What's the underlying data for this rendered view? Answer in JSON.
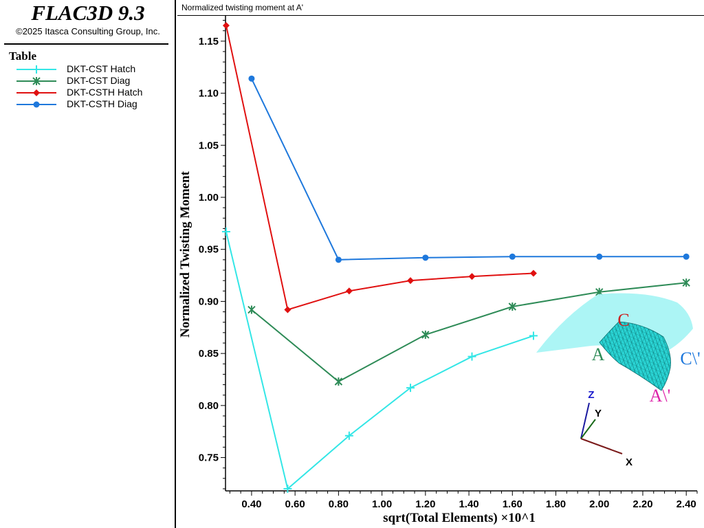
{
  "app": {
    "title": "FLAC3D 9.3",
    "copyright": "©2025 Itasca Consulting Group, Inc."
  },
  "legend": {
    "title": "Table",
    "items": [
      {
        "label": "DKT-CST Hatch",
        "color": "#33e6e6",
        "marker": "plus"
      },
      {
        "label": "DKT-CST Diag",
        "color": "#2e8b57",
        "marker": "asterisk"
      },
      {
        "label": "DKT-CSTH Hatch",
        "color": "#e01010",
        "marker": "diamond"
      },
      {
        "label": "DKT-CSTH Diag",
        "color": "#1e78dc",
        "marker": "circle"
      }
    ]
  },
  "chart_data": {
    "type": "line",
    "title": "Normalized twisting moment at A'",
    "xlabel": "sqrt(Total Elements) ×10^1",
    "ylabel": "Normalized Twisting Moment",
    "xlim": [
      0.28,
      2.45
    ],
    "ylim": [
      0.718,
      1.175
    ],
    "xticks": [
      0.4,
      0.6,
      0.8,
      1.0,
      1.2,
      1.4,
      1.6,
      1.8,
      2.0,
      2.2,
      2.4
    ],
    "xtick_labels": [
      "0.40",
      "0.60",
      "0.80",
      "1.00",
      "1.20",
      "1.40",
      "1.60",
      "1.80",
      "2.00",
      "2.20",
      "2.40"
    ],
    "yticks": [
      0.75,
      0.8,
      0.85,
      0.9,
      0.95,
      1.0,
      1.05,
      1.1,
      1.15
    ],
    "ytick_labels": [
      "0.75",
      "0.80",
      "0.85",
      "0.90",
      "0.95",
      "1.00",
      "1.05",
      "1.10",
      "1.15"
    ],
    "grid": false,
    "series": [
      {
        "name": "DKT-CST Hatch",
        "color": "#33e6e6",
        "marker": "plus",
        "x": [
          0.283,
          0.566,
          0.849,
          1.131,
          1.414,
          1.697
        ],
        "y": [
          0.967,
          0.72,
          0.771,
          0.817,
          0.847,
          0.867
        ]
      },
      {
        "name": "DKT-CST Diag",
        "color": "#2e8b57",
        "marker": "asterisk",
        "x": [
          0.4,
          0.8,
          1.2,
          1.6,
          2.0,
          2.4
        ],
        "y": [
          0.892,
          0.823,
          0.868,
          0.895,
          0.909,
          0.918
        ]
      },
      {
        "name": "DKT-CSTH Hatch",
        "color": "#e01010",
        "marker": "diamond",
        "x": [
          0.283,
          0.566,
          0.849,
          1.131,
          1.414,
          1.697
        ],
        "y": [
          1.165,
          0.892,
          0.91,
          0.92,
          0.924,
          0.927
        ]
      },
      {
        "name": "DKT-CSTH Diag",
        "color": "#1e78dc",
        "marker": "circle",
        "x": [
          0.4,
          0.8,
          1.2,
          1.6,
          2.0,
          2.4
        ],
        "y": [
          1.114,
          0.94,
          0.942,
          0.943,
          0.943,
          0.943
        ]
      }
    ]
  },
  "inset": {
    "labels": {
      "c": "C",
      "a": "A",
      "c_prime": "C\\'",
      "a_prime": "A\\'"
    },
    "axes": {
      "z": "Z",
      "y": "Y",
      "x": "X"
    }
  }
}
